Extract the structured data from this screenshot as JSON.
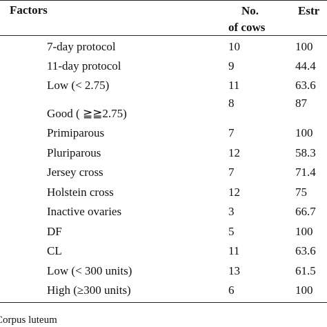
{
  "table": {
    "header": {
      "factors": "Factors",
      "count_line1": "No.",
      "count_line2": "of cows",
      "estrus": "Estr"
    },
    "rows": [
      [
        "7-day protocol",
        "10",
        "100"
      ],
      [
        "11-day protocol",
        "9",
        "44.4"
      ],
      [
        "Low (< 2.75)",
        "11",
        "63.6"
      ],
      [
        "Good ( ≧≧2.75)",
        "8",
        "87"
      ],
      [
        "Primiparous",
        "7",
        "100"
      ],
      [
        "Pluriparous",
        "12",
        "58.3"
      ],
      [
        "Jersey cross",
        "7",
        "71.4"
      ],
      [
        "Holstein cross",
        "12",
        "75"
      ],
      [
        "Inactive ovaries",
        "3",
        "66.7"
      ],
      [
        "DF",
        "5",
        "100"
      ],
      [
        "CL",
        "11",
        "63.6"
      ],
      [
        "Low (< 300 units)",
        "13",
        "61.5"
      ],
      [
        "High (≥300 units)",
        "6",
        "100"
      ]
    ]
  },
  "footnote": "Corpus luteum"
}
